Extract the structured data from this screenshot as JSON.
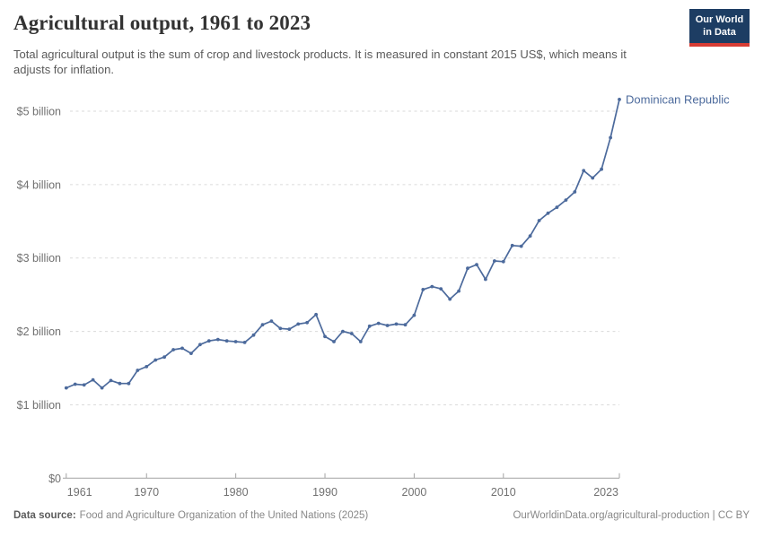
{
  "header": {
    "logo": {
      "line1": "Our World",
      "line2": "in Data"
    }
  },
  "chart_data": {
    "type": "line",
    "title": "Agricultural output, 1961 to 2023",
    "subtitle": "Total agricultural output is the sum of crop and livestock products. It is measured in constant 2015 US$, which means it adjusts for inflation.",
    "xlabel": "",
    "ylabel": "",
    "unit": "constant 2015 US$ billion",
    "grid": "horizontal-dashed",
    "legend_position": "end-of-line-label",
    "xlim": [
      1961,
      2023
    ],
    "ylim": [
      0,
      5.3
    ],
    "x_ticks": [
      1961,
      1970,
      1980,
      1990,
      2000,
      2010,
      2023
    ],
    "y_ticks": [
      {
        "value": 0,
        "label": "$0"
      },
      {
        "value": 1,
        "label": "$1 billion"
      },
      {
        "value": 2,
        "label": "$2 billion"
      },
      {
        "value": 3,
        "label": "$3 billion"
      },
      {
        "value": 4,
        "label": "$4 billion"
      },
      {
        "value": 5,
        "label": "$5 billion"
      }
    ],
    "x": [
      1961,
      1962,
      1963,
      1964,
      1965,
      1966,
      1967,
      1968,
      1969,
      1970,
      1971,
      1972,
      1973,
      1974,
      1975,
      1976,
      1977,
      1978,
      1979,
      1980,
      1981,
      1982,
      1983,
      1984,
      1985,
      1986,
      1987,
      1988,
      1989,
      1990,
      1991,
      1992,
      1993,
      1994,
      1995,
      1996,
      1997,
      1998,
      1999,
      2000,
      2001,
      2002,
      2003,
      2004,
      2005,
      2006,
      2007,
      2008,
      2009,
      2010,
      2011,
      2012,
      2013,
      2014,
      2015,
      2016,
      2017,
      2018,
      2019,
      2020,
      2021,
      2022,
      2023
    ],
    "series": [
      {
        "name": "Dominican Republic",
        "color": "#4c6a9c",
        "values": [
          1.23,
          1.28,
          1.27,
          1.34,
          1.23,
          1.33,
          1.29,
          1.29,
          1.47,
          1.52,
          1.61,
          1.65,
          1.75,
          1.77,
          1.7,
          1.82,
          1.87,
          1.89,
          1.87,
          1.86,
          1.85,
          1.95,
          2.09,
          2.14,
          2.04,
          2.03,
          2.1,
          2.12,
          2.23,
          1.93,
          1.86,
          2.0,
          1.97,
          1.86,
          2.07,
          2.11,
          2.08,
          2.1,
          2.09,
          2.22,
          2.57,
          2.61,
          2.58,
          2.44,
          2.55,
          2.86,
          2.91,
          2.71,
          2.96,
          2.95,
          3.17,
          3.16,
          3.3,
          3.51,
          3.61,
          3.69,
          3.79,
          3.9,
          4.19,
          4.09,
          4.21,
          4.64,
          5.16
        ]
      }
    ]
  },
  "colors": {
    "series_blue": "#4c6a9c",
    "grid_gray": "#dadada",
    "axis_gray": "#a3a3a3",
    "tick_text_gray": "#717171",
    "logo_navy": "#1d3d63",
    "logo_red": "#d73c34"
  },
  "footer": {
    "source_label": "Data source:",
    "source_text": "Food and Agriculture Organization of the United Nations (2025)",
    "link_text": "OurWorldinData.org/agricultural-production | CC BY"
  }
}
